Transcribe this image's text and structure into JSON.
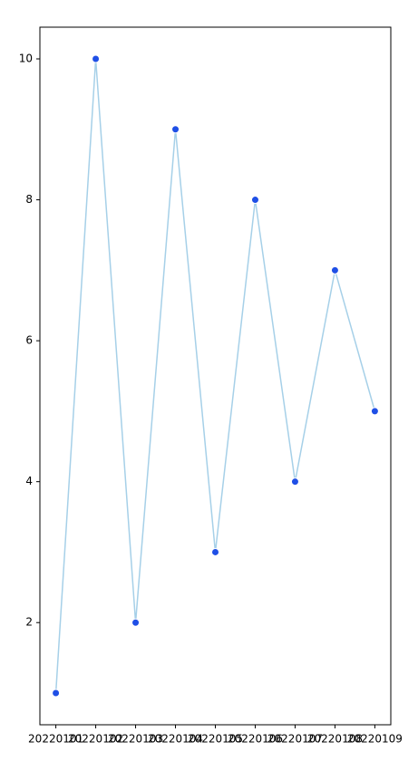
{
  "chart_data": {
    "type": "line",
    "categories": [
      "20220101",
      "20220102",
      "20220103",
      "20220104",
      "20220105",
      "20220106",
      "20220107",
      "20220108",
      "20220109"
    ],
    "series": [
      {
        "values": [
          1,
          10,
          2,
          9,
          3,
          8,
          4,
          7,
          5
        ],
        "color": "#a6d0e8",
        "marker_color": "#1f4fe6"
      }
    ],
    "ylim": [
      0.55,
      10.45
    ],
    "yticks": [
      2,
      4,
      6,
      8,
      10
    ],
    "grid": false
  }
}
